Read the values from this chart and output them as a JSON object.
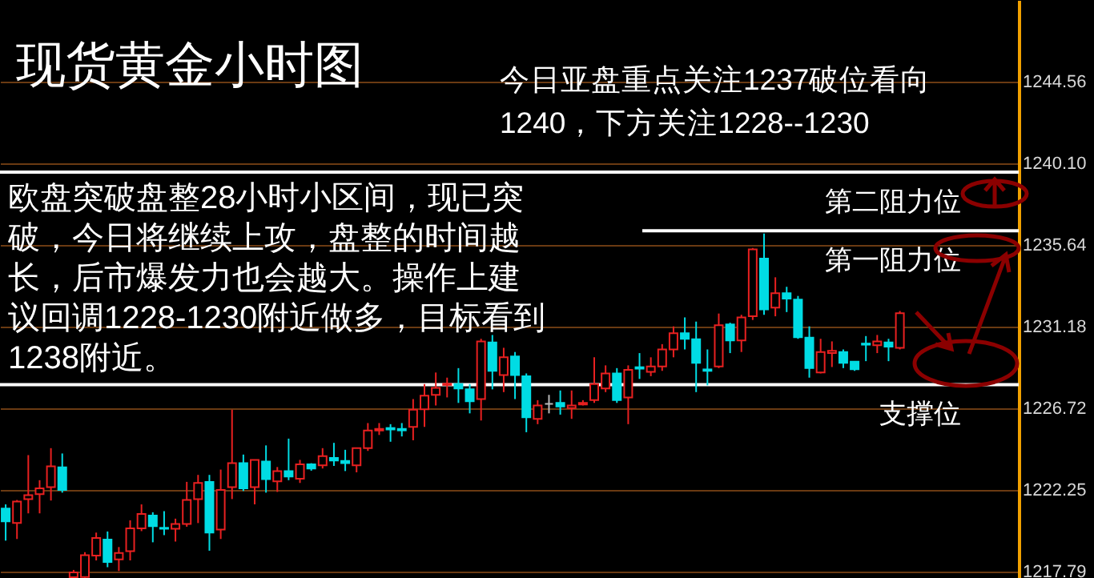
{
  "chart_data": {
    "type": "candlestick",
    "title": "现货黄金小时图",
    "annotations": [
      "今日亚盘重点关注1237破位看向1240，下方关注1228--1230",
      "欧盘突破盘整28小时小区间，现已突破，今日将继续上攻，盘整的时间越长，后市爆发力也会越大。操作上建议回调1228-1230附近做多，目标看到1238附近。"
    ],
    "categories": [
      null,
      null,
      null,
      null,
      null,
      null,
      null,
      null,
      null,
      null,
      null,
      null,
      null,
      null,
      null,
      null,
      null,
      null,
      null,
      null,
      null,
      null,
      null,
      null,
      null,
      null,
      null,
      null,
      null,
      null,
      null,
      null,
      null,
      null,
      null,
      null,
      null,
      null,
      null,
      null,
      null,
      null,
      null,
      null,
      null,
      null,
      null,
      null,
      null,
      null,
      null,
      null,
      null,
      null,
      null,
      null,
      null,
      null,
      null,
      null,
      null,
      null,
      null,
      null,
      null,
      null,
      null,
      null,
      null,
      null,
      null,
      null,
      null,
      null,
      null,
      null,
      null,
      null,
      null,
      null,
      null,
      null,
      null,
      null,
      null,
      null,
      null,
      null,
      null,
      null
    ],
    "ohlc": [
      [
        1221.23,
        1221.46,
        1219.48,
        1220.53
      ],
      [
        1220.44,
        1221.7,
        1219.57,
        1221.61
      ],
      [
        1221.75,
        1224.15,
        1220.97,
        1221.96
      ],
      [
        1222.02,
        1222.78,
        1220.97,
        1222.34
      ],
      [
        1222.4,
        1224.53,
        1221.67,
        1223.54
      ],
      [
        1223.48,
        1224.24,
        1222.1,
        1222.25
      ],
      [
        1217.48,
        1217.88,
        1217.45,
        1217.75
      ],
      [
        1217.5,
        1218.85,
        1217.45,
        1218.69
      ],
      [
        1218.66,
        1219.92,
        1218.4,
        1219.63
      ],
      [
        1219.54,
        1219.98,
        1218.03,
        1218.31
      ],
      [
        1218.46,
        1219.13,
        1217.82,
        1218.81
      ],
      [
        1218.9,
        1220.59,
        1218.4,
        1220.15
      ],
      [
        1220.15,
        1221.46,
        1220.0,
        1220.94
      ],
      [
        1220.85,
        1221.03,
        1219.39,
        1220.27
      ],
      [
        1220.18,
        1221.09,
        1219.78,
        1220.13
      ],
      [
        1220.13,
        1220.68,
        1219.43,
        1220.39
      ],
      [
        1220.39,
        1222.69,
        1220.24,
        1221.7
      ],
      [
        1221.75,
        1223.07,
        1220.44,
        1222.63
      ],
      [
        1222.69,
        1223.07,
        1218.93,
        1219.92
      ],
      [
        1220.09,
        1223.36,
        1219.57,
        1222.25
      ],
      [
        1222.4,
        1226.63,
        1221.75,
        1223.71
      ],
      [
        1223.71,
        1224.18,
        1222.19,
        1222.34
      ],
      [
        1222.4,
        1223.89,
        1221.46,
        1223.89
      ],
      [
        1223.8,
        1224.68,
        1222.1,
        1222.84
      ],
      [
        1222.72,
        1223.5,
        1222.14,
        1223.28
      ],
      [
        1223.28,
        1225.05,
        1222.78,
        1222.98
      ],
      [
        1222.86,
        1223.89,
        1222.63,
        1223.65
      ],
      [
        1223.65,
        1223.71,
        1223.3,
        1223.42
      ],
      [
        1223.59,
        1224.53,
        1223.42,
        1224.09
      ],
      [
        1224.0,
        1224.82,
        1223.56,
        1223.85
      ],
      [
        1223.83,
        1224.44,
        1223.28,
        1223.71
      ],
      [
        1223.59,
        1224.53,
        1223.21,
        1224.53
      ],
      [
        1224.53,
        1225.9,
        1224.38,
        1225.49
      ],
      [
        1225.49,
        1225.9,
        1225.25,
        1225.58
      ],
      [
        1225.63,
        1225.84,
        1224.88,
        1225.55
      ],
      [
        1225.58,
        1225.9,
        1225.17,
        1225.5
      ],
      [
        1225.69,
        1227.21,
        1224.96,
        1226.63
      ],
      [
        1226.65,
        1228.03,
        1225.69,
        1227.39
      ],
      [
        1227.44,
        1228.66,
        1226.86,
        1227.82
      ],
      [
        1227.98,
        1228.38,
        1227.3,
        1228.05
      ],
      [
        1228.03,
        1228.9,
        1227.0,
        1227.79
      ],
      [
        1227.74,
        1228.03,
        1226.43,
        1227.09
      ],
      [
        1227.21,
        1230.5,
        1226.04,
        1230.36
      ],
      [
        1230.3,
        1230.71,
        1227.74,
        1228.75
      ],
      [
        1228.52,
        1230.01,
        1227.59,
        1229.49
      ],
      [
        1229.54,
        1229.78,
        1227.21,
        1228.52
      ],
      [
        1228.46,
        1228.61,
        1225.4,
        1226.22
      ],
      [
        1226.13,
        1227.15,
        1225.84,
        1226.86
      ],
      [
        1226.95,
        1227.44,
        1226.43,
        1226.95
      ],
      [
        1227.0,
        1227.68,
        1226.36,
        1226.8
      ],
      [
        1226.72,
        1227.68,
        1226.13,
        1226.86
      ],
      [
        1226.91,
        1227.15,
        1226.86,
        1227.0
      ],
      [
        1227.15,
        1229.49,
        1227.0,
        1228.03
      ],
      [
        1227.79,
        1229.05,
        1227.59,
        1228.61
      ],
      [
        1228.61,
        1228.9,
        1227.0,
        1227.15
      ],
      [
        1227.3,
        1229.05,
        1225.84,
        1228.81
      ],
      [
        1228.95,
        1229.72,
        1228.31,
        1228.87
      ],
      [
        1228.7,
        1229.49,
        1228.46,
        1228.99
      ],
      [
        1228.99,
        1230.21,
        1228.75,
        1229.92
      ],
      [
        1229.92,
        1231.18,
        1229.49,
        1230.8
      ],
      [
        1230.8,
        1231.67,
        1229.92,
        1230.5
      ],
      [
        1230.48,
        1231.44,
        1227.59,
        1229.19
      ],
      [
        1228.83,
        1229.92,
        1227.96,
        1228.75
      ],
      [
        1228.99,
        1231.88,
        1228.9,
        1231.24
      ],
      [
        1231.29,
        1231.38,
        1229.72,
        1230.41
      ],
      [
        1230.41,
        1231.81,
        1229.78,
        1231.67
      ],
      [
        1231.73,
        1235.46,
        1231.53,
        1235.38
      ],
      [
        1234.88,
        1236.25,
        1231.81,
        1232.11
      ],
      [
        1232.2,
        1233.86,
        1231.73,
        1232.99
      ],
      [
        1232.99,
        1233.34,
        1231.96,
        1232.69
      ],
      [
        1232.64,
        1232.84,
        1230.5,
        1230.59
      ],
      [
        1230.56,
        1231.18,
        1228.38,
        1228.9
      ],
      [
        1228.66,
        1230.5,
        1228.61,
        1229.78
      ],
      [
        1229.72,
        1230.36,
        1228.96,
        1229.84
      ],
      [
        1229.78,
        1229.92,
        1228.9,
        1229.19
      ],
      [
        1229.25,
        1229.25,
        1228.75,
        1228.84
      ],
      [
        1230.24,
        1230.65,
        1229.28,
        1230.18
      ],
      [
        1230.15,
        1230.71,
        1229.72,
        1230.36
      ],
      [
        1230.3,
        1230.5,
        1229.28,
        1230.07
      ],
      [
        1230.01,
        1232.02,
        1229.92,
        1231.9
      ],
      null,
      null,
      null,
      null,
      null,
      null,
      null,
      null,
      null,
      null
    ],
    "colors": [
      "#00dce4",
      "#e82020",
      "#e82020",
      "#e82020",
      "#e82020",
      "#00dce4",
      "#e82020",
      "#e82020",
      "#e82020",
      "#00dce4",
      "#e82020",
      "#e82020",
      "#e82020",
      "#00dce4",
      "#00dce4",
      "#e82020",
      "#e82020",
      "#e82020",
      "#00dce4",
      "#e82020",
      "#e82020",
      "#00dce4",
      "#e82020",
      "#00dce4",
      "#e82020",
      "#00dce4",
      "#e82020",
      "#00dce4",
      "#e82020",
      "#00dce4",
      "#00dce4",
      "#e82020",
      "#e82020",
      "#e82020",
      "#00dce4",
      "#00dce4",
      "#e82020",
      "#e82020",
      "#e82020",
      "#e82020",
      "#00dce4",
      "#00dce4",
      "#e82020",
      "#00dce4",
      "#e82020",
      "#00dce4",
      "#00dce4",
      "#e82020",
      "#b8b8b8",
      "#00dce4",
      "#e82020",
      "#e82020",
      "#e82020",
      "#e82020",
      "#00dce4",
      "#e82020",
      "#00dce4",
      "#e82020",
      "#e82020",
      "#e82020",
      "#00dce4",
      "#00dce4",
      "#00dce4",
      "#e82020",
      "#00dce4",
      "#e82020",
      "#e82020",
      "#00dce4",
      "#e82020",
      "#00dce4",
      "#00dce4",
      "#00dce4",
      "#e82020",
      "#e82020",
      "#00dce4",
      "#00dce4",
      "#00dce4",
      "#e82020",
      "#00dce4",
      "#e82020",
      null,
      null,
      null,
      null,
      null,
      null,
      null,
      null,
      null,
      null
    ],
    "ylim": [
      1217.44,
      1249.0
    ],
    "yticks": [
      1217.79,
      1222.25,
      1226.72,
      1231.18,
      1235.64,
      {
        "value": 1240.1,
        "label": "1240.10"
      },
      1244.56
    ],
    "grid": "y",
    "tick_labels": "y",
    "ref_lines": [
      {
        "axis": "y",
        "value": 1239.6,
        "label": "第二阻力位",
        "color": "#ffffff"
      },
      {
        "axis": "y",
        "value": 1236.4,
        "label": "第一阻力位",
        "color": "#ffffff"
      },
      {
        "axis": "y",
        "value": 1228.0,
        "label": "支撑位",
        "color": "#ffffff"
      }
    ]
  }
}
